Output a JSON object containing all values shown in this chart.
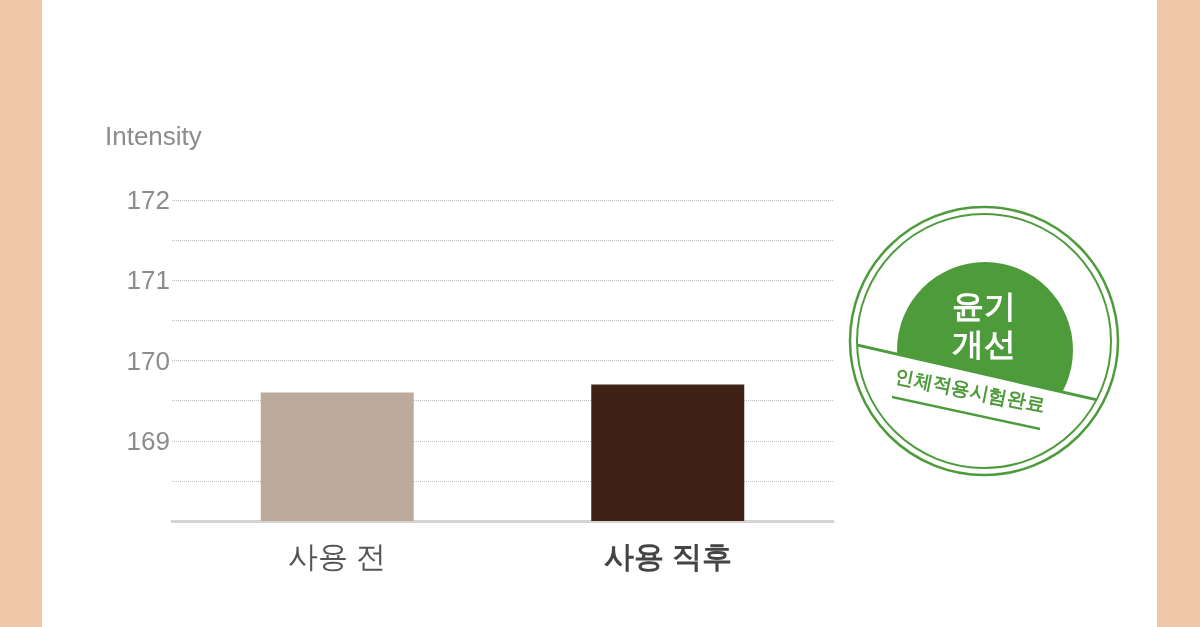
{
  "chart_data": {
    "type": "bar",
    "ylabel": "Intensity",
    "categories": [
      "사용 전",
      "사용 직후"
    ],
    "values": [
      169.6,
      169.7
    ],
    "colors": [
      "#bcab9d",
      "#3e2216"
    ],
    "ylim": [
      168,
      172
    ],
    "yticks": [
      {
        "value": 168.5,
        "label": null
      },
      169,
      {
        "value": 169.5,
        "label": null
      },
      170,
      {
        "value": 170.5,
        "label": null
      },
      171,
      {
        "value": 171.5,
        "label": null
      },
      172
    ],
    "grid": "y",
    "annotations": [
      "윤기 개선",
      "인체적용시험완료"
    ]
  }
}
